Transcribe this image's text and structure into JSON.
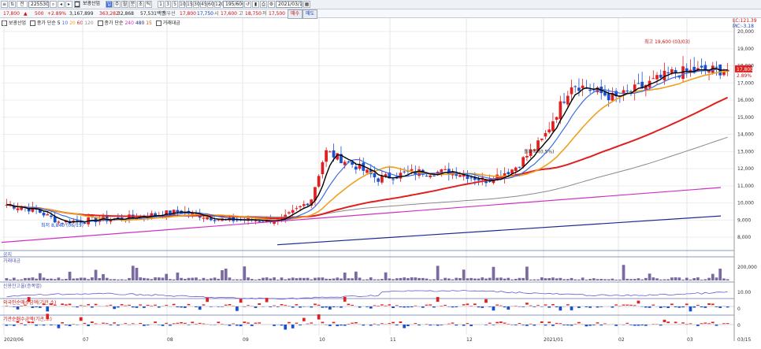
{
  "toolbar": {
    "code": "225530",
    "name": "보광산업",
    "mode_tabs": [
      "일",
      "주",
      "월",
      "분",
      "초",
      "틱"
    ],
    "period_buttons": [
      "1",
      "3",
      "5",
      "10",
      "15",
      "30",
      "45",
      "60",
      "120"
    ],
    "count": "195/600",
    "date": "2021/03/15"
  },
  "quote": {
    "price": "17,800",
    "change": "500",
    "change_pct": "+2.89%",
    "volume": "3,167,899",
    "amount": "363,282",
    "turnover": "32,868",
    "amount_label": "57,531백만",
    "best_label": "최우선",
    "best_ask": "17,800",
    "best_bid": "17,750",
    "open_label": "시",
    "open": "17,600",
    "high_label": "고",
    "high": "18,750",
    "low_label": "저",
    "low": "17,500",
    "buy_btn": "매수",
    "sell_btn": "매도"
  },
  "legend": {
    "name": "보광산업",
    "ma_label1": "종가 단순",
    "ma_short": [
      "5",
      "10",
      "20",
      "60",
      "120"
    ],
    "ma_label2": "종가 단순",
    "ma_long": [
      "240",
      "480",
      "15"
    ],
    "vol_label": "거래대금"
  },
  "annotations": {
    "high": "최고 19,600 (03/03)",
    "low": "최저 8,840 (06/15)",
    "mid": "돌파목 (0.5%)"
  },
  "right_top": {
    "lc": "LC:121.39",
    "mc": "MC:-3.18"
  },
  "last_price_tag": "17,800",
  "last_pct_tag": "2.89%",
  "price_axis": [
    "20,000",
    "19,000",
    "18,000",
    "17,000",
    "16,000",
    "15,000",
    "14,000",
    "13,000",
    "12,000",
    "11,000",
    "10,000",
    "9,000",
    "8,000"
  ],
  "panels": [
    {
      "label": "공지",
      "ticks": []
    },
    {
      "label": "거래대금",
      "ticks": [
        "200,000"
      ]
    },
    {
      "label": "신용잔고율(증폭별)",
      "ticks": [
        "10.00"
      ]
    },
    {
      "label": "외국인순매수금액(기관,소)",
      "ticks": [
        "0"
      ]
    },
    {
      "label": "기관순매수금액(기관,소)",
      "ticks": [
        "0"
      ]
    }
  ],
  "x_axis": [
    "2020/06",
    "07",
    "08",
    "09",
    "10",
    "11",
    "12",
    "2021/01",
    "02",
    "03"
  ],
  "x_end": "03/15",
  "chart_data": {
    "type": "candlestick",
    "x_range": [
      "2020/06",
      "2021/03/15"
    ],
    "y_range": [
      7500,
      20000
    ],
    "last": 17800,
    "high": {
      "value": 19600,
      "date": "03/03"
    },
    "low": {
      "value": 8840,
      "date": "06/15"
    }
  },
  "colors": {
    "up": "#e02020",
    "down": "#1a50d0",
    "ma5": "#000000",
    "ma10": "#3a6ee0",
    "ma20": "#f0a020",
    "ma60": "#e02020",
    "ma120": "#8a8a8a",
    "ma240": "#d030c0",
    "ma480": "#1a2a90"
  }
}
